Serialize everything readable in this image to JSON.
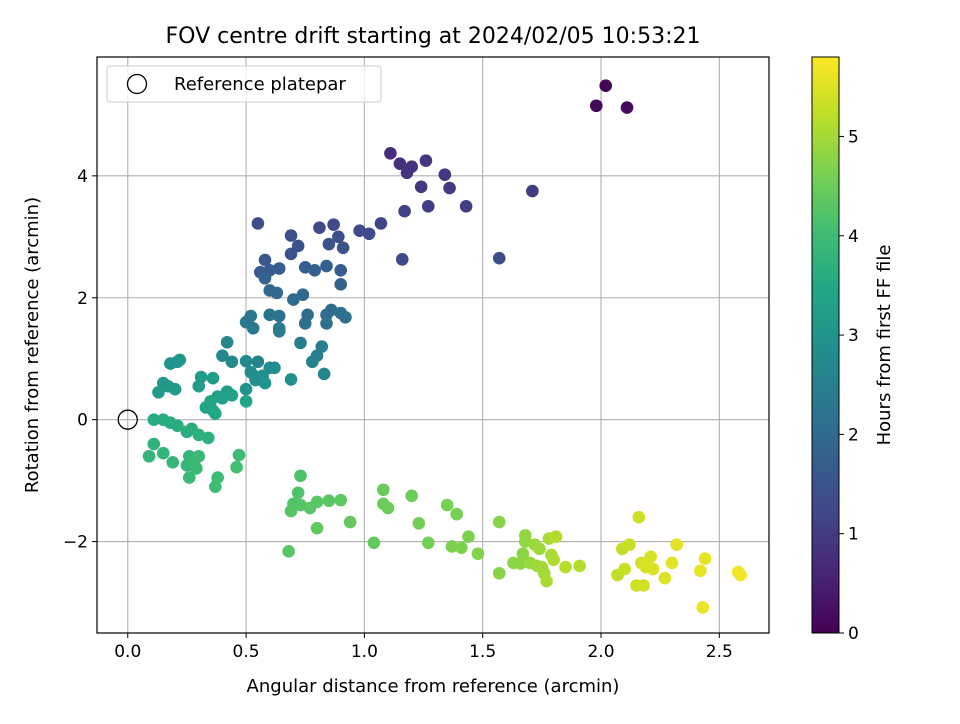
{
  "chart_data": {
    "type": "scatter",
    "title": "FOV centre drift starting at 2024/02/05 10:53:21",
    "xlabel": "Angular distance from reference (arcmin)",
    "ylabel": "Rotation from reference (arcmin)",
    "xlim": [
      -0.13,
      2.71
    ],
    "ylim": [
      -3.5,
      5.95
    ],
    "xticks": [
      0.0,
      0.5,
      1.0,
      1.5,
      2.0,
      2.5
    ],
    "xtick_labels": [
      "0.0",
      "0.5",
      "1.0",
      "1.5",
      "2.0",
      "2.5"
    ],
    "yticks": [
      -2,
      0,
      2,
      4
    ],
    "ytick_labels": [
      "−2",
      "0",
      "2",
      "4"
    ],
    "grid": true,
    "legend": {
      "position": "top-left",
      "entries": [
        "Reference platepar"
      ]
    },
    "reference_point": {
      "x": 0.0,
      "y": 0.0
    },
    "colorbar": {
      "label": "Hours from first FF file",
      "colormap": "viridis",
      "range": [
        0,
        5.8
      ],
      "ticks": [
        0,
        1,
        2,
        3,
        4,
        5
      ],
      "tick_labels": [
        "0",
        "1",
        "2",
        "3",
        "4",
        "5"
      ]
    },
    "points": [
      [
        2.02,
        5.48,
        0.05
      ],
      [
        1.98,
        5.15,
        0.1
      ],
      [
        2.11,
        5.12,
        0.15
      ],
      [
        1.11,
        4.37,
        0.75
      ],
      [
        1.15,
        4.2,
        0.8
      ],
      [
        1.2,
        4.15,
        0.85
      ],
      [
        1.26,
        4.25,
        0.9
      ],
      [
        1.18,
        4.05,
        0.85
      ],
      [
        1.34,
        4.02,
        0.95
      ],
      [
        1.24,
        3.82,
        0.95
      ],
      [
        1.36,
        3.8,
        1.0
      ],
      [
        1.71,
        3.75,
        1.0
      ],
      [
        1.27,
        3.5,
        1.05
      ],
      [
        1.43,
        3.5,
        1.05
      ],
      [
        1.17,
        3.42,
        1.1
      ],
      [
        1.07,
        3.22,
        1.2
      ],
      [
        0.87,
        3.2,
        1.25
      ],
      [
        0.81,
        3.15,
        1.3
      ],
      [
        0.55,
        3.22,
        1.4
      ],
      [
        0.69,
        3.02,
        1.4
      ],
      [
        0.98,
        3.1,
        1.3
      ],
      [
        1.02,
        3.05,
        1.35
      ],
      [
        0.89,
        3.0,
        1.4
      ],
      [
        0.85,
        2.88,
        1.45
      ],
      [
        0.91,
        2.82,
        1.45
      ],
      [
        0.72,
        2.85,
        1.5
      ],
      [
        0.69,
        2.72,
        1.5
      ],
      [
        1.16,
        2.63,
        1.3
      ],
      [
        1.57,
        2.65,
        1.35
      ],
      [
        0.58,
        2.62,
        1.6
      ],
      [
        0.56,
        2.42,
        1.65
      ],
      [
        0.6,
        2.45,
        1.65
      ],
      [
        0.64,
        2.48,
        1.7
      ],
      [
        0.75,
        2.5,
        1.7
      ],
      [
        0.79,
        2.45,
        1.75
      ],
      [
        0.84,
        2.52,
        1.75
      ],
      [
        0.9,
        2.45,
        1.7
      ],
      [
        0.9,
        2.22,
        1.8
      ],
      [
        0.58,
        2.32,
        1.85
      ],
      [
        0.6,
        2.12,
        1.9
      ],
      [
        0.63,
        2.08,
        1.95
      ],
      [
        0.7,
        1.97,
        1.95
      ],
      [
        0.74,
        2.05,
        1.95
      ],
      [
        0.76,
        1.72,
        2.05
      ],
      [
        0.84,
        1.72,
        2.05
      ],
      [
        0.86,
        1.8,
        2.0
      ],
      [
        0.9,
        1.75,
        2.1
      ],
      [
        0.92,
        1.68,
        2.1
      ],
      [
        0.84,
        1.58,
        2.15
      ],
      [
        0.75,
        1.58,
        2.15
      ],
      [
        0.6,
        1.72,
        2.2
      ],
      [
        0.64,
        1.7,
        2.2
      ],
      [
        0.5,
        1.6,
        2.3
      ],
      [
        0.52,
        1.7,
        2.3
      ],
      [
        0.53,
        1.5,
        2.35
      ],
      [
        0.64,
        1.45,
        2.35
      ],
      [
        0.64,
        1.5,
        2.4
      ],
      [
        0.73,
        1.26,
        2.4
      ],
      [
        0.82,
        1.2,
        2.45
      ],
      [
        0.8,
        1.05,
        2.5
      ],
      [
        0.78,
        0.95,
        2.55
      ],
      [
        0.83,
        0.75,
        2.6
      ],
      [
        0.55,
        0.95,
        2.6
      ],
      [
        0.4,
        1.05,
        2.7
      ],
      [
        0.42,
        1.27,
        2.65
      ],
      [
        0.44,
        0.95,
        2.7
      ],
      [
        0.5,
        0.96,
        2.75
      ],
      [
        0.52,
        0.78,
        2.8
      ],
      [
        0.6,
        0.85,
        2.8
      ],
      [
        0.54,
        0.65,
        2.85
      ],
      [
        0.57,
        0.72,
        2.85
      ],
      [
        0.62,
        0.85,
        2.8
      ],
      [
        0.69,
        0.66,
        2.9
      ],
      [
        0.55,
        0.7,
        2.9
      ],
      [
        0.58,
        0.6,
        2.95
      ],
      [
        0.5,
        0.5,
        3.0
      ],
      [
        0.21,
        0.95,
        3.0
      ],
      [
        0.18,
        0.92,
        3.0
      ],
      [
        0.22,
        0.98,
        3.05
      ],
      [
        0.15,
        0.6,
        3.1
      ],
      [
        0.17,
        0.55,
        3.1
      ],
      [
        0.13,
        0.45,
        3.15
      ],
      [
        0.2,
        0.5,
        3.15
      ],
      [
        0.31,
        0.7,
        3.15
      ],
      [
        0.3,
        0.55,
        3.2
      ],
      [
        0.36,
        0.68,
        3.25
      ],
      [
        0.42,
        0.46,
        3.25
      ],
      [
        0.44,
        0.4,
        3.3
      ],
      [
        0.38,
        0.38,
        3.3
      ],
      [
        0.35,
        0.3,
        3.35
      ],
      [
        0.4,
        0.35,
        3.3
      ],
      [
        0.33,
        0.2,
        3.4
      ],
      [
        0.36,
        0.15,
        3.4
      ],
      [
        0.37,
        0.1,
        3.45
      ],
      [
        0.5,
        0.3,
        3.4
      ],
      [
        0.11,
        0.0,
        3.55
      ],
      [
        0.15,
        0.0,
        3.55
      ],
      [
        0.18,
        -0.05,
        3.6
      ],
      [
        0.21,
        -0.1,
        3.6
      ],
      [
        0.25,
        -0.2,
        3.65
      ],
      [
        0.27,
        -0.15,
        3.65
      ],
      [
        0.3,
        -0.25,
        3.7
      ],
      [
        0.34,
        -0.3,
        3.7
      ],
      [
        0.11,
        -0.4,
        3.75
      ],
      [
        0.09,
        -0.6,
        3.8
      ],
      [
        0.15,
        -0.55,
        3.8
      ],
      [
        0.19,
        -0.7,
        3.85
      ],
      [
        0.25,
        -0.75,
        3.85
      ],
      [
        0.26,
        -0.6,
        3.85
      ],
      [
        0.28,
        -0.7,
        3.9
      ],
      [
        0.3,
        -0.6,
        3.9
      ],
      [
        0.29,
        -0.8,
        3.95
      ],
      [
        0.26,
        -0.95,
        3.95
      ],
      [
        0.38,
        -0.95,
        4.0
      ],
      [
        0.37,
        -1.1,
        4.0
      ],
      [
        0.47,
        -0.58,
        4.0
      ],
      [
        0.46,
        -0.78,
        4.05
      ],
      [
        0.73,
        -0.92,
        4.15
      ],
      [
        0.72,
        -1.2,
        4.2
      ],
      [
        0.7,
        -1.38,
        4.2
      ],
      [
        0.73,
        -1.4,
        4.25
      ],
      [
        0.69,
        -1.5,
        4.25
      ],
      [
        0.77,
        -1.45,
        4.3
      ],
      [
        0.8,
        -1.35,
        4.3
      ],
      [
        0.85,
        -1.33,
        4.3
      ],
      [
        0.9,
        -1.32,
        4.35
      ],
      [
        0.8,
        -1.78,
        4.35
      ],
      [
        0.68,
        -2.16,
        4.3
      ],
      [
        0.94,
        -1.68,
        4.4
      ],
      [
        1.04,
        -2.02,
        4.4
      ],
      [
        1.08,
        -1.15,
        4.45
      ],
      [
        1.08,
        -1.38,
        4.45
      ],
      [
        1.1,
        -1.45,
        4.5
      ],
      [
        1.2,
        -1.25,
        4.5
      ],
      [
        1.23,
        -1.7,
        4.55
      ],
      [
        1.27,
        -2.02,
        4.55
      ],
      [
        1.35,
        -1.4,
        4.6
      ],
      [
        1.39,
        -1.55,
        4.6
      ],
      [
        1.37,
        -2.08,
        4.65
      ],
      [
        1.41,
        -2.1,
        4.65
      ],
      [
        1.44,
        -1.92,
        4.65
      ],
      [
        1.48,
        -2.2,
        4.7
      ],
      [
        1.57,
        -1.68,
        4.75
      ],
      [
        1.57,
        -2.52,
        4.75
      ],
      [
        1.63,
        -2.35,
        4.8
      ],
      [
        1.66,
        -2.36,
        4.8
      ],
      [
        1.67,
        -2.2,
        4.8
      ],
      [
        1.68,
        -1.9,
        4.85
      ],
      [
        1.68,
        -2.0,
        4.85
      ],
      [
        1.7,
        -2.35,
        4.9
      ],
      [
        1.72,
        -2.05,
        4.9
      ],
      [
        1.73,
        -2.4,
        4.95
      ],
      [
        1.74,
        -2.12,
        4.95
      ],
      [
        1.75,
        -2.42,
        5.0
      ],
      [
        1.76,
        -2.52,
        5.0
      ],
      [
        1.77,
        -2.65,
        5.05
      ],
      [
        1.78,
        -1.95,
        5.05
      ],
      [
        1.79,
        -2.22,
        5.05
      ],
      [
        1.8,
        -2.3,
        5.1
      ],
      [
        1.81,
        -1.92,
        5.1
      ],
      [
        1.85,
        -2.42,
        5.15
      ],
      [
        1.91,
        -2.4,
        5.15
      ],
      [
        2.07,
        -2.55,
        5.25
      ],
      [
        2.09,
        -2.12,
        5.25
      ],
      [
        2.12,
        -2.05,
        5.3
      ],
      [
        2.1,
        -2.45,
        5.3
      ],
      [
        2.15,
        -2.72,
        5.35
      ],
      [
        2.16,
        -1.6,
        5.35
      ],
      [
        2.17,
        -2.35,
        5.4
      ],
      [
        2.18,
        -2.72,
        5.4
      ],
      [
        2.19,
        -2.42,
        5.45
      ],
      [
        2.21,
        -2.25,
        5.45
      ],
      [
        2.22,
        -2.45,
        5.5
      ],
      [
        2.27,
        -2.6,
        5.5
      ],
      [
        2.3,
        -2.35,
        5.55
      ],
      [
        2.32,
        -2.05,
        5.55
      ],
      [
        2.42,
        -2.48,
        5.6
      ],
      [
        2.44,
        -2.28,
        5.6
      ],
      [
        2.43,
        -3.08,
        5.65
      ],
      [
        2.58,
        -2.5,
        5.7
      ],
      [
        2.59,
        -2.55,
        5.72
      ]
    ]
  }
}
